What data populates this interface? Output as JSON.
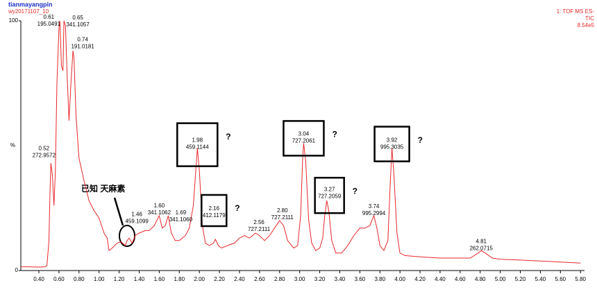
{
  "header": {
    "sample": "tianmayangpin",
    "file": "wy20171107_10",
    "function": "1: TOF MS ES-",
    "trace": "TIC",
    "intensity": "8.54e5"
  },
  "chart_data": {
    "type": "line",
    "x": [
      0.22,
      0.3,
      0.4,
      0.46,
      0.48,
      0.5,
      0.51,
      0.52,
      0.535,
      0.55,
      0.565,
      0.58,
      0.6,
      0.61,
      0.625,
      0.64,
      0.65,
      0.665,
      0.68,
      0.7,
      0.72,
      0.74,
      0.75,
      0.77,
      0.8,
      0.85,
      0.9,
      0.95,
      1.0,
      1.05,
      1.08,
      1.1,
      1.13,
      1.18,
      1.22,
      1.26,
      1.28,
      1.3,
      1.33,
      1.36,
      1.4,
      1.46,
      1.5,
      1.55,
      1.6,
      1.63,
      1.66,
      1.69,
      1.72,
      1.76,
      1.8,
      1.86,
      1.9,
      1.94,
      1.97,
      1.98,
      2.0,
      2.03,
      2.06,
      2.1,
      2.14,
      2.16,
      2.19,
      2.22,
      2.28,
      2.35,
      2.4,
      2.45,
      2.5,
      2.56,
      2.6,
      2.65,
      2.7,
      2.75,
      2.8,
      2.84,
      2.88,
      2.94,
      2.98,
      3.01,
      3.03,
      3.04,
      3.06,
      3.09,
      3.12,
      3.16,
      3.2,
      3.23,
      3.25,
      3.27,
      3.29,
      3.32,
      3.36,
      3.42,
      3.48,
      3.54,
      3.6,
      3.65,
      3.7,
      3.74,
      3.77,
      3.8,
      3.84,
      3.88,
      3.9,
      3.92,
      3.94,
      3.97,
      4.0,
      4.05,
      4.2,
      4.4,
      4.6,
      4.7,
      4.78,
      4.81,
      4.85,
      4.92,
      5.0,
      5.2,
      5.4,
      5.6,
      5.8
    ],
    "series": [
      {
        "color": "#e8272a",
        "values": [
          1.5,
          1.5,
          1.4,
          1.5,
          2,
          12,
          30,
          43,
          38,
          26,
          40,
          75,
          97,
          100,
          82,
          80,
          100,
          98,
          80,
          60,
          75,
          88,
          85,
          62,
          45,
          36,
          28,
          24,
          21,
          15,
          13,
          8,
          9,
          11,
          11.5,
          10,
          12,
          13,
          11,
          14,
          15,
          16,
          16,
          18,
          22,
          17,
          18,
          22,
          15,
          12,
          12,
          14,
          17,
          26,
          43,
          49,
          40,
          18,
          11,
          10,
          11,
          12.5,
          10,
          9,
          10,
          11,
          13,
          14,
          13,
          15,
          14,
          12,
          14,
          17,
          20,
          18,
          12,
          9,
          10,
          22,
          45,
          51,
          44,
          20,
          11,
          8,
          9,
          13,
          22,
          28,
          24,
          12,
          7,
          7,
          10,
          14,
          17,
          17,
          18,
          22,
          17,
          10,
          8,
          12,
          32,
          49,
          38,
          15,
          7,
          6,
          5.5,
          5,
          5,
          5,
          7,
          8,
          7,
          5,
          4.5,
          4.2,
          3.8,
          3.4,
          3.0
        ]
      }
    ],
    "xlim": [
      0.22,
      5.84
    ],
    "ylim": [
      0,
      100
    ],
    "yticks": [
      0,
      100
    ],
    "ylabel": "%",
    "xticks": [
      {
        "value": 0.4,
        "label": "0.40"
      },
      {
        "value": 0.6,
        "label": "0.60"
      },
      {
        "value": 0.8,
        "label": "0.80"
      },
      {
        "value": 1.0,
        "label": "1.00"
      },
      {
        "value": 1.2,
        "label": "1.20"
      },
      {
        "value": 1.4,
        "label": "1.40"
      },
      {
        "value": 1.6,
        "label": "1.60"
      },
      {
        "value": 1.8,
        "label": "1.80"
      },
      {
        "value": 2.0,
        "label": "2.00"
      },
      {
        "value": 2.2,
        "label": "2.20"
      },
      {
        "value": 2.4,
        "label": "2.40"
      },
      {
        "value": 2.6,
        "label": "2.60"
      },
      {
        "value": 2.8,
        "label": "2.80"
      },
      {
        "value": 3.0,
        "label": "3.00"
      },
      {
        "value": 3.2,
        "label": "3.20"
      },
      {
        "value": 3.4,
        "label": "3.40"
      },
      {
        "value": 3.6,
        "label": "3.60"
      },
      {
        "value": 3.8,
        "label": "3.80"
      },
      {
        "value": 4.0,
        "label": "4.00"
      },
      {
        "value": 4.2,
        "label": "4.20"
      },
      {
        "value": 4.4,
        "label": "4.40"
      },
      {
        "value": 4.6,
        "label": "4.60"
      },
      {
        "value": 4.8,
        "label": "4.80"
      },
      {
        "value": 5.0,
        "label": "5.00"
      },
      {
        "value": 5.2,
        "label": "5.20"
      },
      {
        "value": 5.4,
        "label": "5.40"
      },
      {
        "value": 5.6,
        "label": "5.60"
      },
      {
        "value": 5.8,
        "label": "5.80"
      }
    ],
    "peaks": [
      {
        "time": 0.52,
        "mass": 272.9572
      },
      {
        "time": 0.61,
        "mass": 195.0491
      },
      {
        "time": 0.65,
        "mass": 341.1057
      },
      {
        "time": 0.74,
        "mass": 191.0181
      },
      {
        "time": 1.46,
        "mass": 459.1099
      },
      {
        "time": {
          "value": 1.6,
          "label": "1.60"
        },
        "mass": 341.1062
      },
      {
        "time": 1.69,
        "mass": {
          "value": 341.106,
          "label": "341.1060"
        }
      },
      {
        "time": 1.98,
        "mass": 459.1144,
        "note": "?"
      },
      {
        "time": 2.16,
        "mass": 412.1179,
        "note": "?"
      },
      {
        "time": 2.56,
        "mass": 727.2111
      },
      {
        "time": {
          "value": 2.8,
          "label": "2.80"
        },
        "mass": 727.2111
      },
      {
        "time": 3.04,
        "mass": 727.2061,
        "note": "?"
      },
      {
        "time": 3.27,
        "mass": 727.2059,
        "note": "?"
      },
      {
        "time": 3.74,
        "mass": 995.2994
      },
      {
        "time": 3.92,
        "mass": 995.3035,
        "note": "?"
      },
      {
        "time": 4.81,
        "mass": 262.0715
      }
    ],
    "annotation": "已知 天麻素"
  }
}
